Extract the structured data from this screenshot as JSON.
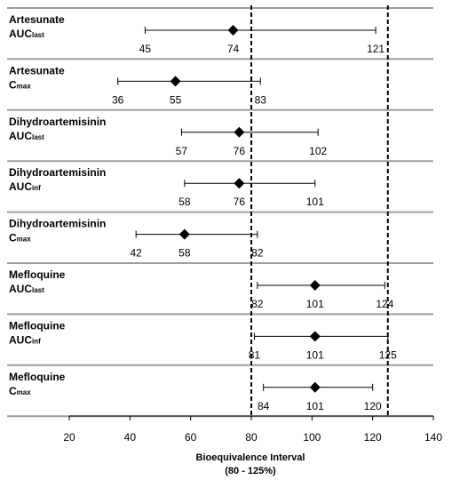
{
  "chart_data": {
    "type": "forest",
    "title": "",
    "xlabel": "Bioequivalence Interval",
    "xlabel_line2": "(80 - 125%)",
    "xlim": [
      20,
      140
    ],
    "xticks": [
      "20",
      "40",
      "60",
      "80",
      "100",
      "120",
      "140"
    ],
    "reference_lines": [
      80,
      125
    ],
    "grid": "horizontal row separators",
    "marker": "diamond",
    "rows": [
      {
        "analyte": "Artesunate",
        "param_main": "AUC",
        "param_sub": "last",
        "lower": 45,
        "estimate": 74,
        "upper": 121
      },
      {
        "analyte": "Artesunate",
        "param_main": "C",
        "param_sub": "max",
        "lower": 36,
        "estimate": 55,
        "upper": 83
      },
      {
        "analyte": "Dihydroartemisinin",
        "param_main": "AUC",
        "param_sub": "last",
        "lower": 57,
        "estimate": 76,
        "upper": 102
      },
      {
        "analyte": "Dihydroartemisinin",
        "param_main": "AUC",
        "param_sub": "inf",
        "lower": 58,
        "estimate": 76,
        "upper": 101
      },
      {
        "analyte": "Dihydroartemisinin",
        "param_main": "C",
        "param_sub": "max",
        "lower": 42,
        "estimate": 58,
        "upper": 82
      },
      {
        "analyte": "Mefloquine",
        "param_main": "AUC",
        "param_sub": "last",
        "lower": 82,
        "estimate": 101,
        "upper": 124
      },
      {
        "analyte": "Mefloquine",
        "param_main": "AUC",
        "param_sub": "inf",
        "lower": 81,
        "estimate": 101,
        "upper": 125
      },
      {
        "analyte": "Mefloquine",
        "param_main": "C",
        "param_sub": "max",
        "lower": 84,
        "estimate": 101,
        "upper": 120
      }
    ]
  }
}
